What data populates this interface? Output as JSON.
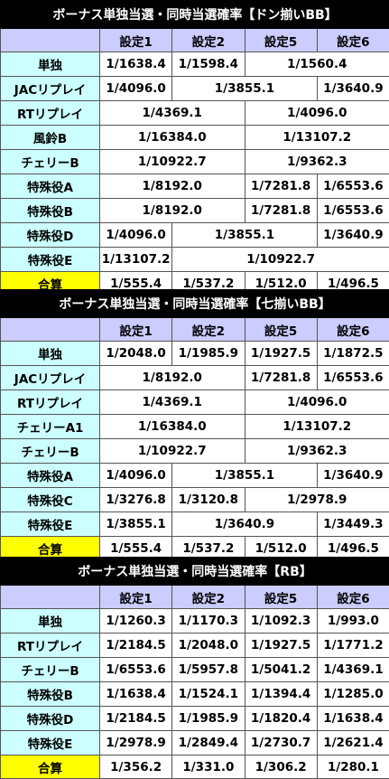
{
  "sections": [
    {
      "title": "ボーナス単独当選・同時当選確率【ドン揃いBB】",
      "headers": [
        "設定1",
        "設定2",
        "設定5",
        "設定6"
      ],
      "rows": [
        {
          "label": "単独",
          "cells": [
            {
              "v": "1/1638.4",
              "s": 1
            },
            {
              "v": "1/1598.4",
              "s": 1
            },
            {
              "v": "1/1560.4",
              "s": 2
            }
          ]
        },
        {
          "label": "JACリプレイ",
          "cells": [
            {
              "v": "1/4096.0",
              "s": 1
            },
            {
              "v": "1/3855.1",
              "s": 2
            },
            {
              "v": "1/3640.9",
              "s": 1
            }
          ]
        },
        {
          "label": "RTリプレイ",
          "cells": [
            {
              "v": "1/4369.1",
              "s": 2
            },
            {
              "v": "1/4096.0",
              "s": 2
            }
          ]
        },
        {
          "label": "風鈴B",
          "cells": [
            {
              "v": "1/16384.0",
              "s": 2
            },
            {
              "v": "1/13107.2",
              "s": 2
            }
          ]
        },
        {
          "label": "チェリーB",
          "cells": [
            {
              "v": "1/10922.7",
              "s": 2
            },
            {
              "v": "1/9362.3",
              "s": 2
            }
          ]
        },
        {
          "label": "特殊役A",
          "cells": [
            {
              "v": "1/8192.0",
              "s": 2
            },
            {
              "v": "1/7281.8",
              "s": 1
            },
            {
              "v": "1/6553.6",
              "s": 1
            }
          ]
        },
        {
          "label": "特殊役B",
          "cells": [
            {
              "v": "1/8192.0",
              "s": 2
            },
            {
              "v": "1/7281.8",
              "s": 1
            },
            {
              "v": "1/6553.6",
              "s": 1
            }
          ]
        },
        {
          "label": "特殊役D",
          "cells": [
            {
              "v": "1/4096.0",
              "s": 1
            },
            {
              "v": "1/3855.1",
              "s": 2
            },
            {
              "v": "1/3640.9",
              "s": 1
            }
          ]
        },
        {
          "label": "特殊役E",
          "cells": [
            {
              "v": "1/13107.2",
              "s": 1
            },
            {
              "v": "1/10922.7",
              "s": 3
            }
          ]
        },
        {
          "label": "合算",
          "total": true,
          "cells": [
            {
              "v": "1/555.4",
              "s": 1
            },
            {
              "v": "1/537.2",
              "s": 1
            },
            {
              "v": "1/512.0",
              "s": 1
            },
            {
              "v": "1/496.5",
              "s": 1
            }
          ]
        }
      ]
    },
    {
      "title": "ボーナス単独当選・同時当選確率【七揃いBB】",
      "headers": [
        "設定1",
        "設定2",
        "設定5",
        "設定6"
      ],
      "rows": [
        {
          "label": "単独",
          "cells": [
            {
              "v": "1/2048.0",
              "s": 1
            },
            {
              "v": "1/1985.9",
              "s": 1
            },
            {
              "v": "1/1927.5",
              "s": 1
            },
            {
              "v": "1/1872.5",
              "s": 1
            }
          ]
        },
        {
          "label": "JACリプレイ",
          "cells": [
            {
              "v": "1/8192.0",
              "s": 2
            },
            {
              "v": "1/7281.8",
              "s": 1
            },
            {
              "v": "1/6553.6",
              "s": 1
            }
          ]
        },
        {
          "label": "RTリプレイ",
          "cells": [
            {
              "v": "1/4369.1",
              "s": 2
            },
            {
              "v": "1/4096.0",
              "s": 2
            }
          ]
        },
        {
          "label": "チェリーA1",
          "cells": [
            {
              "v": "1/16384.0",
              "s": 2
            },
            {
              "v": "1/13107.2",
              "s": 2
            }
          ]
        },
        {
          "label": "チェリーB",
          "cells": [
            {
              "v": "1/10922.7",
              "s": 2
            },
            {
              "v": "1/9362.3",
              "s": 2
            }
          ]
        },
        {
          "label": "特殊役A",
          "cells": [
            {
              "v": "1/4096.0",
              "s": 1
            },
            {
              "v": "1/3855.1",
              "s": 2
            },
            {
              "v": "1/3640.9",
              "s": 1
            }
          ]
        },
        {
          "label": "特殊役C",
          "cells": [
            {
              "v": "1/3276.8",
              "s": 1
            },
            {
              "v": "1/3120.8",
              "s": 1
            },
            {
              "v": "1/2978.9",
              "s": 2
            }
          ]
        },
        {
          "label": "特殊役E",
          "cells": [
            {
              "v": "1/3855.1",
              "s": 1
            },
            {
              "v": "1/3640.9",
              "s": 2
            },
            {
              "v": "1/3449.3",
              "s": 1
            }
          ]
        },
        {
          "label": "合算",
          "total": true,
          "cells": [
            {
              "v": "1/555.4",
              "s": 1
            },
            {
              "v": "1/537.2",
              "s": 1
            },
            {
              "v": "1/512.0",
              "s": 1
            },
            {
              "v": "1/496.5",
              "s": 1
            }
          ]
        }
      ]
    },
    {
      "title": "ボーナス単独当選・同時当選確率【RB】",
      "headers": [
        "設定1",
        "設定2",
        "設定5",
        "設定6"
      ],
      "rows": [
        {
          "label": "単独",
          "cells": [
            {
              "v": "1/1260.3",
              "s": 1
            },
            {
              "v": "1/1170.3",
              "s": 1
            },
            {
              "v": "1/1092.3",
              "s": 1
            },
            {
              "v": "1/993.0",
              "s": 1
            }
          ]
        },
        {
          "label": "RTリプレイ",
          "cells": [
            {
              "v": "1/2184.5",
              "s": 1
            },
            {
              "v": "1/2048.0",
              "s": 1
            },
            {
              "v": "1/1927.5",
              "s": 1
            },
            {
              "v": "1/1771.2",
              "s": 1
            }
          ]
        },
        {
          "label": "チェリーB",
          "cells": [
            {
              "v": "1/6553.6",
              "s": 1
            },
            {
              "v": "1/5957.8",
              "s": 1
            },
            {
              "v": "1/5041.2",
              "s": 1
            },
            {
              "v": "1/4369.1",
              "s": 1
            }
          ]
        },
        {
          "label": "特殊役B",
          "cells": [
            {
              "v": "1/1638.4",
              "s": 1
            },
            {
              "v": "1/1524.1",
              "s": 1
            },
            {
              "v": "1/1394.4",
              "s": 1
            },
            {
              "v": "1/1285.0",
              "s": 1
            }
          ]
        },
        {
          "label": "特殊役D",
          "cells": [
            {
              "v": "1/2184.5",
              "s": 1
            },
            {
              "v": "1/1985.9",
              "s": 1
            },
            {
              "v": "1/1820.4",
              "s": 1
            },
            {
              "v": "1/1638.4",
              "s": 1
            }
          ]
        },
        {
          "label": "特殊役E",
          "cells": [
            {
              "v": "1/2978.9",
              "s": 1
            },
            {
              "v": "1/2849.4",
              "s": 1
            },
            {
              "v": "1/2730.7",
              "s": 1
            },
            {
              "v": "1/2621.4",
              "s": 1
            }
          ]
        },
        {
          "label": "合算",
          "total": true,
          "cells": [
            {
              "v": "1/356.2",
              "s": 1
            },
            {
              "v": "1/331.0",
              "s": 1
            },
            {
              "v": "1/306.2",
              "s": 1
            },
            {
              "v": "1/280.1",
              "s": 1
            }
          ]
        }
      ]
    }
  ]
}
